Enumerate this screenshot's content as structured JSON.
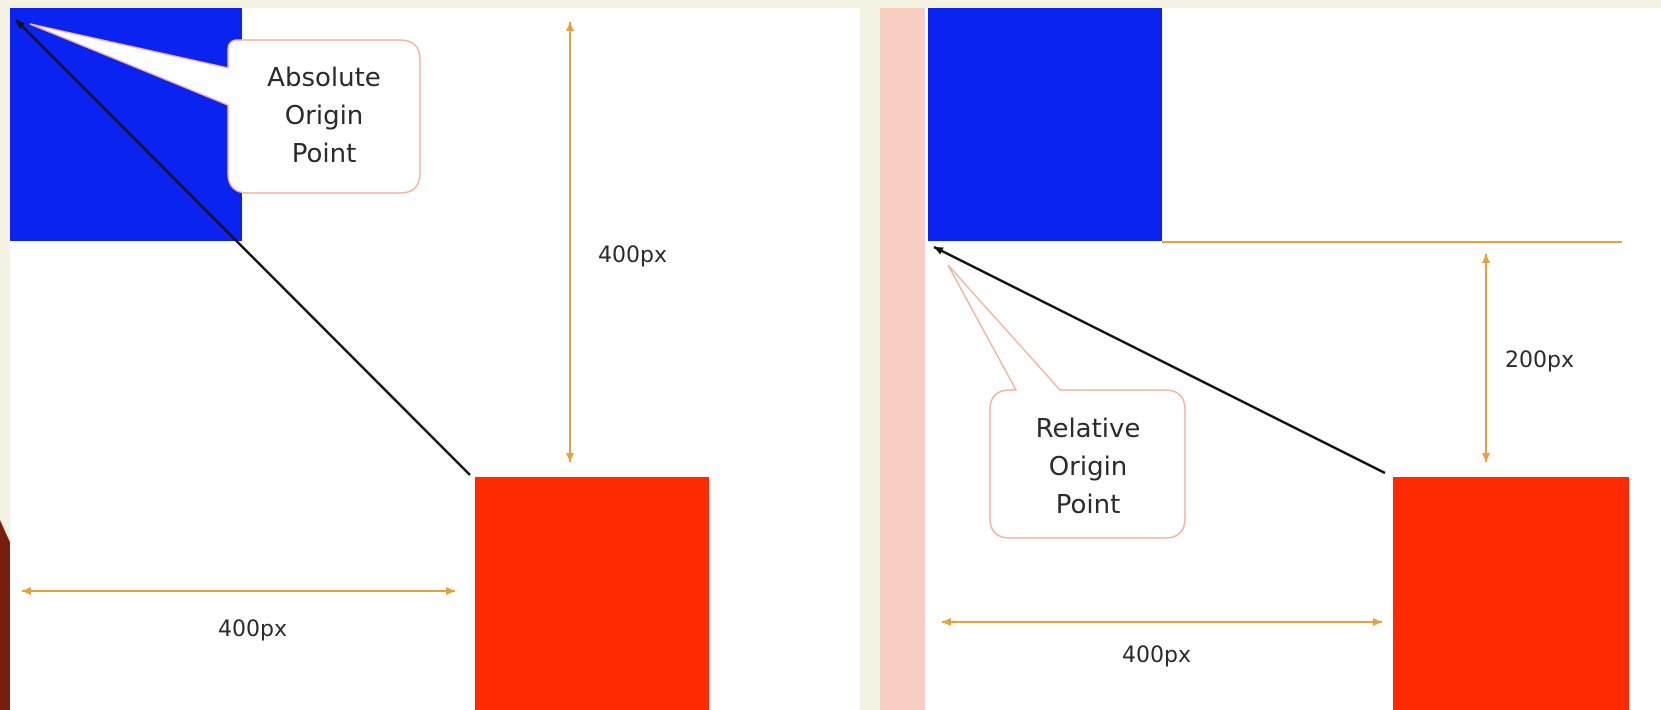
{
  "colors": {
    "blue_box": "#0a23f0",
    "red_box": "#ff2a00",
    "arrow": "#e6a040",
    "panel": "#ffffff",
    "divider": "#f8cfc2",
    "callout_border": "#f1b39f",
    "background": "#f4f3e3"
  },
  "left_panel": {
    "callout": {
      "lines": [
        "Absolute",
        "Origin",
        "Point"
      ]
    },
    "vertical_distance": "400px",
    "horizontal_distance": "400px"
  },
  "right_panel": {
    "callout": {
      "lines": [
        "Relative",
        "Origin",
        "Point"
      ]
    },
    "vertical_distance": "200px",
    "horizontal_distance": "400px"
  }
}
